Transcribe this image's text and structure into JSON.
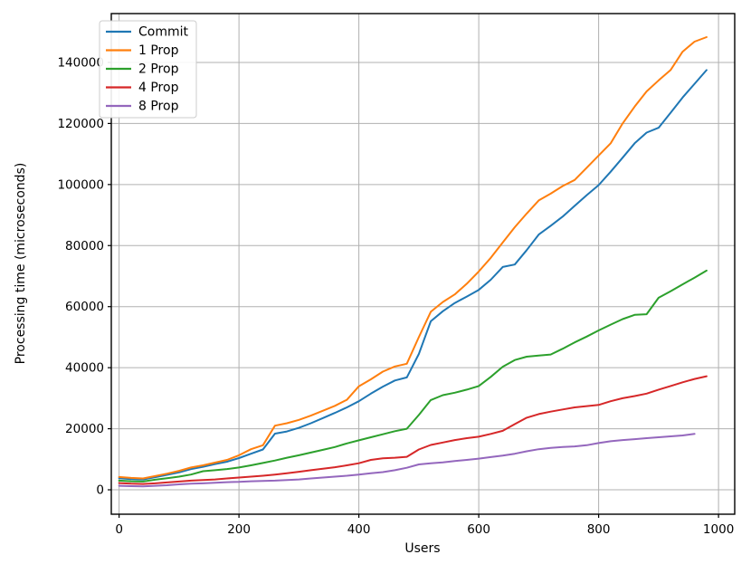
{
  "figure": {
    "background": "#ffffff",
    "plot_background": "#ffffff"
  },
  "chart_data": {
    "type": "line",
    "title": "",
    "xlabel": "Users",
    "ylabel": "Processing time (microseconds)",
    "xlim": [
      -13,
      1027
    ],
    "ylim": [
      -8000,
      156000
    ],
    "xticks": [
      0,
      200,
      400,
      600,
      800,
      1000
    ],
    "yticks": [
      0,
      20000,
      40000,
      60000,
      80000,
      100000,
      120000,
      140000
    ],
    "grid": true,
    "grid_color": "#b0b0b0",
    "spine_color": "#000000",
    "legend": {
      "position": "upper-left",
      "background": "#ffffff",
      "border_color": "#cccccc",
      "entries": [
        "Commit",
        "1 Prop",
        "2 Prop",
        "4 Prop",
        "8 Prop"
      ]
    },
    "x": [
      0,
      20,
      40,
      60,
      80,
      100,
      120,
      140,
      160,
      180,
      200,
      220,
      240,
      260,
      280,
      300,
      320,
      340,
      360,
      380,
      400,
      420,
      440,
      460,
      480,
      500,
      520,
      540,
      560,
      580,
      600,
      620,
      640,
      660,
      680,
      700,
      720,
      740,
      760,
      780,
      800,
      820,
      840,
      860,
      880,
      900,
      920,
      940,
      960,
      980
    ],
    "series": [
      {
        "name": "Commit",
        "color": "#1f77b4",
        "values": [
          3800,
          3500,
          3400,
          4100,
          4900,
          5700,
          6800,
          7500,
          8400,
          9200,
          10400,
          11800,
          13200,
          18400,
          19100,
          20300,
          21800,
          23500,
          25200,
          27000,
          29000,
          31500,
          33800,
          35800,
          36800,
          44500,
          55200,
          58500,
          61200,
          63300,
          65500,
          68800,
          73000,
          73800,
          78500,
          83600,
          86500,
          89500,
          93000,
          96500,
          99800,
          104200,
          108800,
          113500,
          117000,
          118600,
          123500,
          128500,
          133000,
          137500
        ]
      },
      {
        "name": "1 Prop",
        "color": "#ff7f0e",
        "values": [
          4200,
          3900,
          3700,
          4500,
          5300,
          6200,
          7300,
          8000,
          8900,
          9800,
          11300,
          13300,
          14600,
          21000,
          21800,
          22900,
          24300,
          25900,
          27500,
          29500,
          33900,
          36200,
          38700,
          40400,
          41300,
          50000,
          58300,
          61500,
          64000,
          67500,
          71500,
          76000,
          81000,
          86000,
          90500,
          94800,
          97000,
          99500,
          101500,
          105500,
          109500,
          113500,
          120000,
          125500,
          130500,
          134100,
          137500,
          143500,
          146800,
          148300
        ]
      },
      {
        "name": "2 Prop",
        "color": "#2ca02c",
        "values": [
          3000,
          2800,
          2700,
          3300,
          3800,
          4300,
          5000,
          6100,
          6400,
          6800,
          7300,
          8000,
          8800,
          9600,
          10500,
          11300,
          12200,
          13100,
          14000,
          15200,
          16200,
          17200,
          18200,
          19200,
          20000,
          24500,
          29400,
          31000,
          31800,
          32800,
          34000,
          37000,
          40300,
          42500,
          43600,
          44000,
          44300,
          46200,
          48300,
          50200,
          52200,
          54100,
          55900,
          57300,
          57500,
          62900,
          65000,
          67300,
          69500,
          71800
        ]
      },
      {
        "name": "4 Prop",
        "color": "#d62728",
        "values": [
          2200,
          2000,
          1900,
          2100,
          2400,
          2700,
          3000,
          3200,
          3400,
          3700,
          4000,
          4300,
          4600,
          5000,
          5400,
          5900,
          6400,
          6900,
          7400,
          8000,
          8700,
          9800,
          10300,
          10500,
          10800,
          13200,
          14700,
          15500,
          16300,
          16900,
          17400,
          18300,
          19300,
          21500,
          23600,
          24800,
          25600,
          26300,
          27000,
          27400,
          27800,
          29000,
          30000,
          30700,
          31500,
          32800,
          34000,
          35200,
          36300,
          37200
        ]
      },
      {
        "name": "8 Prop",
        "color": "#9467bd",
        "values": [
          1300,
          1200,
          1100,
          1300,
          1500,
          1800,
          2000,
          2100,
          2300,
          2500,
          2600,
          2800,
          2900,
          3000,
          3200,
          3400,
          3700,
          4000,
          4300,
          4600,
          5000,
          5400,
          5800,
          6400,
          7200,
          8300,
          8700,
          9000,
          9400,
          9800,
          10200,
          10700,
          11200,
          11800,
          12600,
          13300,
          13700,
          14000,
          14200,
          14600,
          15300,
          15900,
          16300,
          16600,
          16900,
          17200,
          17500,
          17800,
          18300,
          null
        ]
      }
    ]
  }
}
